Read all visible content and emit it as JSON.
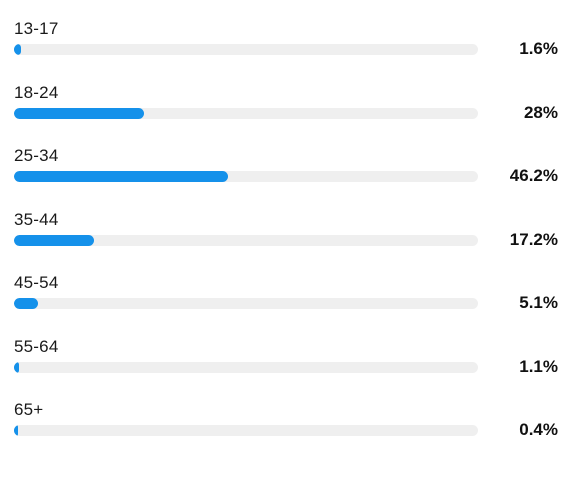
{
  "colors": {
    "bar": "#1591ea",
    "track": "#efefef",
    "text": "#111111"
  },
  "chart_data": {
    "type": "bar",
    "orientation": "horizontal",
    "categories": [
      "13-17",
      "18-24",
      "25-34",
      "35-44",
      "45-54",
      "55-64",
      "65+"
    ],
    "values": [
      1.6,
      28,
      46.2,
      17.2,
      5.1,
      1.1,
      0.4
    ],
    "value_labels": [
      "1.6%",
      "28%",
      "46.2%",
      "17.2%",
      "5.1%",
      "1.1%",
      "0.4%"
    ],
    "unit": "%",
    "xlim": [
      0,
      100
    ],
    "grid": false,
    "legend": "none"
  }
}
